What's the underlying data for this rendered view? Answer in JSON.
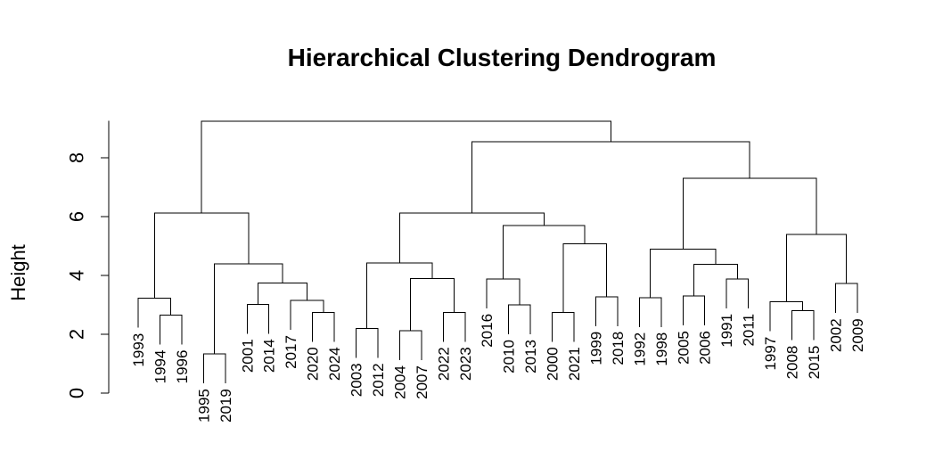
{
  "chart_data": {
    "type": "dendrogram",
    "title": "Hierarchical Clustering Dendrogram",
    "ylabel": "Height",
    "xlabel": "",
    "ylim": [
      0,
      9.2
    ],
    "yticks": [
      0,
      2,
      4,
      6,
      8
    ],
    "leaves": [
      "1993",
      "1994",
      "1996",
      "1995",
      "2019",
      "2001",
      "2014",
      "2017",
      "2020",
      "2024",
      "2003",
      "2012",
      "2004",
      "2007",
      "2022",
      "2023",
      "2016",
      "2010",
      "2013",
      "2000",
      "2021",
      "1999",
      "2018",
      "1992",
      "1998",
      "2005",
      "2006",
      "1991",
      "2011",
      "1997",
      "2008",
      "2015",
      "2002",
      "2009"
    ],
    "merges": [
      {
        "left": "1994",
        "right": "1996",
        "height": 2.65
      },
      {
        "left": "1993",
        "right": "c1",
        "height": 3.22
      },
      {
        "left": "1995",
        "right": "2019",
        "height": 1.33
      },
      {
        "left": "2001",
        "right": "2014",
        "height": 3.02
      },
      {
        "left": "2020",
        "right": "2024",
        "height": 2.75
      },
      {
        "left": "2017",
        "right": "c5",
        "height": 3.15
      },
      {
        "left": "c4",
        "right": "c6",
        "height": 3.75
      },
      {
        "left": "c3",
        "right": "c7",
        "height": 4.4
      },
      {
        "left": "c2",
        "right": "c8",
        "height": 6.12
      },
      {
        "left": "2003",
        "right": "2012",
        "height": 2.2
      },
      {
        "left": "2004",
        "right": "2007",
        "height": 2.12
      },
      {
        "left": "2022",
        "right": "2023",
        "height": 2.75
      },
      {
        "left": "c11",
        "right": "c12",
        "height": 3.9
      },
      {
        "left": "c10",
        "right": "c13",
        "height": 4.42
      },
      {
        "left": "2010",
        "right": "2013",
        "height": 3.0
      },
      {
        "left": "2016",
        "right": "c15",
        "height": 3.88
      },
      {
        "left": "2000",
        "right": "2021",
        "height": 2.75
      },
      {
        "left": "1999",
        "right": "2018",
        "height": 3.28
      },
      {
        "left": "c17",
        "right": "c18",
        "height": 5.08
      },
      {
        "left": "c16",
        "right": "c19",
        "height": 5.7
      },
      {
        "left": "c14",
        "right": "c20",
        "height": 6.12
      },
      {
        "left": "1992",
        "right": "1998",
        "height": 3.25
      },
      {
        "left": "2005",
        "right": "2006",
        "height": 3.3
      },
      {
        "left": "1991",
        "right": "2011",
        "height": 3.88
      },
      {
        "left": "c23",
        "right": "c24",
        "height": 4.38
      },
      {
        "left": "c22",
        "right": "c25",
        "height": 4.9
      },
      {
        "left": "2008",
        "right": "2015",
        "height": 2.8
      },
      {
        "left": "1997",
        "right": "c27",
        "height": 3.1
      },
      {
        "left": "2002",
        "right": "2009",
        "height": 3.72
      },
      {
        "left": "c28",
        "right": "c29",
        "height": 5.4
      },
      {
        "left": "c26",
        "right": "c30",
        "height": 7.3
      },
      {
        "left": "c21",
        "right": "c31",
        "height": 8.55
      },
      {
        "left": "c9",
        "right": "c32",
        "height": 9.25
      }
    ]
  }
}
